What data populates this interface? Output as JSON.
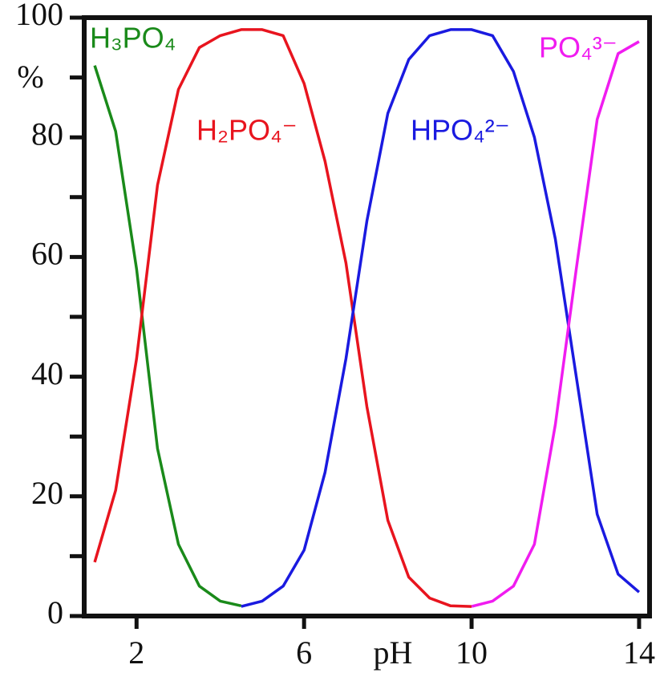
{
  "chart_data": {
    "type": "line",
    "x_label": "pH",
    "y_label": "%",
    "x": [
      1,
      1.5,
      2,
      2.5,
      3,
      3.5,
      4,
      4.5,
      5,
      5.5,
      6,
      6.5,
      7,
      7.5,
      8,
      8.5,
      9,
      9.5,
      10,
      10.5,
      11,
      11.5,
      12,
      12.5,
      13,
      13.5,
      14
    ],
    "series": [
      {
        "name": "H₃PO₄",
        "color": "#1a8a1a",
        "values": [
          92,
          81,
          58,
          28,
          12,
          5,
          2.5,
          1.7,
          null,
          null,
          null,
          null,
          null,
          null,
          null,
          null,
          null,
          null,
          null,
          null,
          null,
          null,
          null,
          null,
          null,
          null,
          null
        ]
      },
      {
        "name": "H₂PO₄⁻",
        "color": "#e8141e",
        "values": [
          9,
          21,
          43,
          72,
          88,
          95,
          97,
          98,
          98,
          97,
          89,
          76,
          59,
          35,
          16,
          6.5,
          3,
          1.7,
          1.6,
          null,
          null,
          null,
          null,
          null,
          null,
          null,
          null
        ]
      },
      {
        "name": "HPO₄²⁻",
        "color": "#1a1ae0",
        "values": [
          null,
          null,
          null,
          null,
          null,
          null,
          null,
          1.6,
          2.5,
          5,
          11,
          24,
          43,
          66,
          84,
          93,
          97,
          98,
          98,
          97,
          91,
          80,
          63,
          40,
          17,
          7,
          4
        ]
      },
      {
        "name": "PO₄³⁻",
        "color": "#f01cf0",
        "values": [
          null,
          null,
          null,
          null,
          null,
          null,
          null,
          null,
          null,
          null,
          null,
          null,
          null,
          null,
          null,
          null,
          null,
          null,
          1.6,
          2.5,
          5,
          12,
          32,
          58,
          83,
          94,
          96
        ]
      }
    ],
    "xlim": [
      0.75,
      14.25
    ],
    "xticks": [
      2,
      6,
      10,
      14
    ],
    "ylim": [
      0,
      100
    ],
    "yticks": [
      0,
      20,
      40,
      60,
      80,
      100
    ],
    "minor_yticks": [
      10,
      30,
      50,
      70,
      90
    ]
  }
}
